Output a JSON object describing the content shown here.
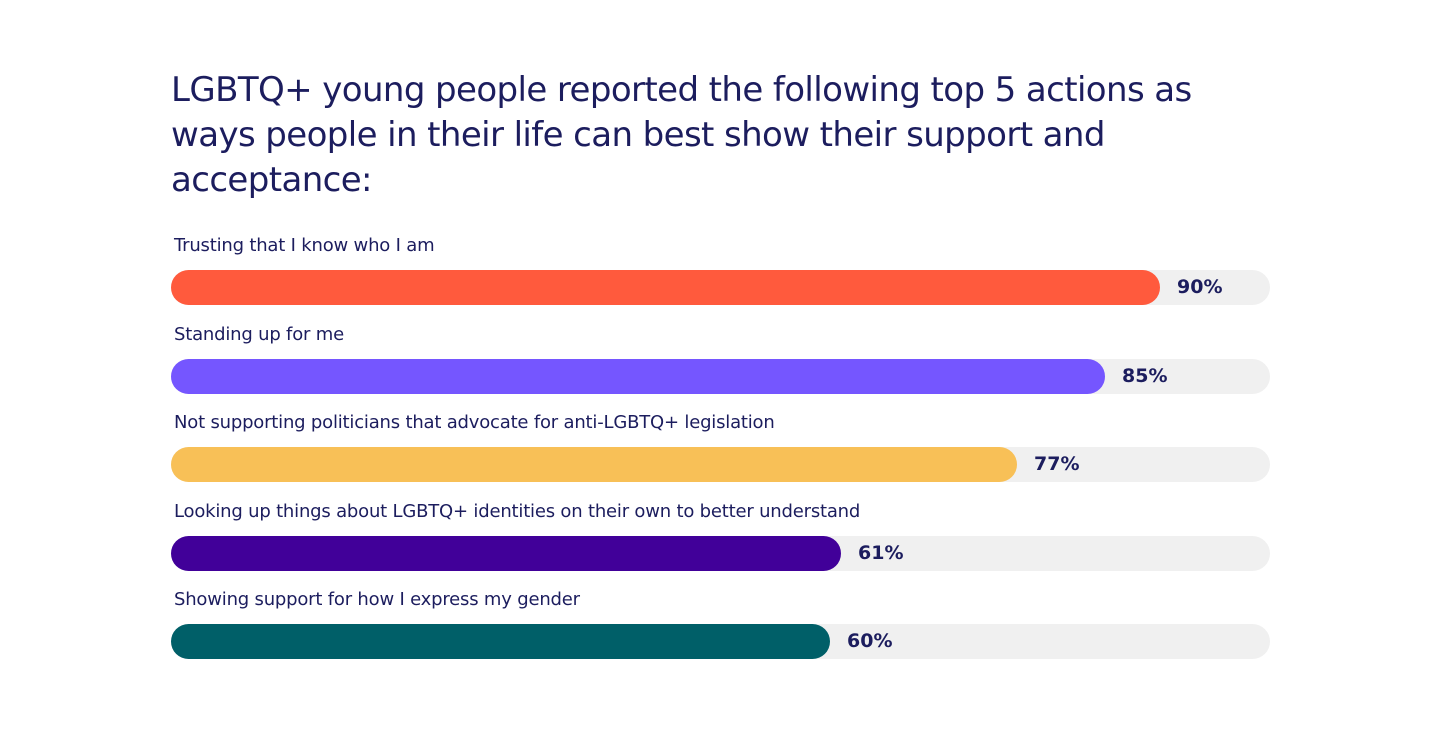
{
  "chart_data": {
    "type": "bar",
    "orientation": "horizontal",
    "title": "LGBTQ+ young people reported the following top 5 actions as ways people in their life can best show their support and acceptance:",
    "xlim": [
      0,
      100
    ],
    "grid": false,
    "categories": [
      "Trusting that I know who I am",
      "Standing up for me",
      "Not supporting politicians that advocate for anti-LGBTQ+ legislation",
      "Looking up things about LGBTQ+ identities on their own to better understand",
      "Showing support for how I express my gender"
    ],
    "values": [
      90,
      85,
      77,
      61,
      60
    ],
    "value_labels": [
      "90%",
      "85%",
      "77%",
      "61%",
      "60%"
    ],
    "colors": [
      "#ff5a3d",
      "#7556ff",
      "#f8c057",
      "#410099",
      "#005f68"
    ],
    "track_color": "#f0f0f0",
    "text_color": "#1c1d5e"
  }
}
